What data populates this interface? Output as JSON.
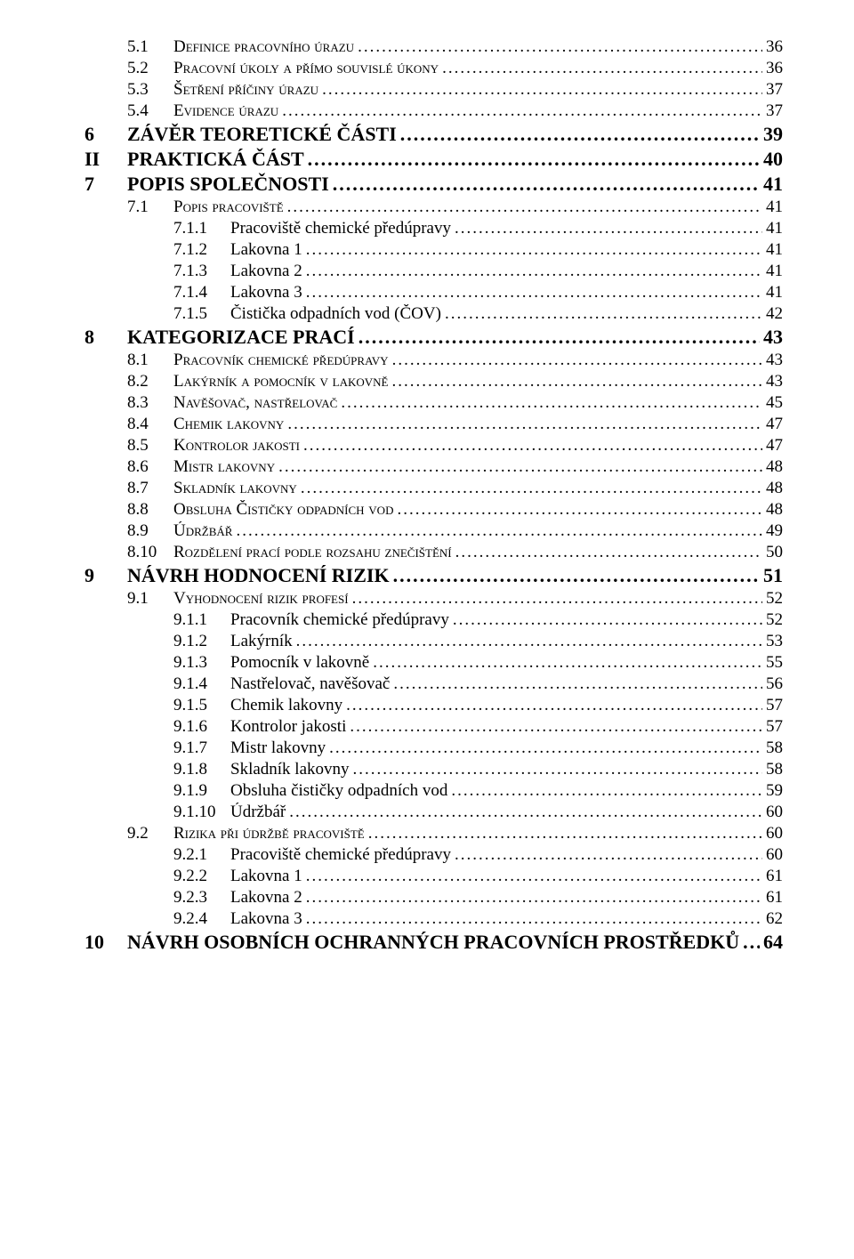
{
  "colors": {
    "text": "#000000",
    "bg": "#ffffff"
  },
  "font": {
    "family": "Times New Roman",
    "l1_size": 22,
    "l2_size": 19,
    "l3_size": 19
  },
  "entries": [
    {
      "level": 2,
      "num": "5.1",
      "label": "Definice pracovního úrazu",
      "page": "36"
    },
    {
      "level": 2,
      "num": "5.2",
      "label": "Pracovní úkoly a přímo souvislé úkony",
      "page": "36"
    },
    {
      "level": 2,
      "num": "5.3",
      "label": "Šetření příčiny úrazu",
      "page": "37"
    },
    {
      "level": 2,
      "num": "5.4",
      "label": "Evidence úrazu",
      "page": "37"
    },
    {
      "level": 1,
      "num": "6",
      "label": "ZÁVĚR TEORETICKÉ ČÁSTI",
      "page": "39"
    },
    {
      "level": 0,
      "num": "II",
      "label": "PRAKTICKÁ ČÁST",
      "page": "40"
    },
    {
      "level": 1,
      "num": "7",
      "label": "POPIS SPOLEČNOSTI",
      "page": "41"
    },
    {
      "level": 2,
      "num": "7.1",
      "label": "Popis pracoviště",
      "page": "41"
    },
    {
      "level": 3,
      "num": "7.1.1",
      "label": "Pracoviště chemické předúpravy",
      "page": "41"
    },
    {
      "level": 3,
      "num": "7.1.2",
      "label": "Lakovna 1",
      "page": "41"
    },
    {
      "level": 3,
      "num": "7.1.3",
      "label": "Lakovna 2",
      "page": "41"
    },
    {
      "level": 3,
      "num": "7.1.4",
      "label": "Lakovna 3",
      "page": "41"
    },
    {
      "level": 3,
      "num": "7.1.5",
      "label": "Čistička odpadních vod (ČOV)",
      "page": "42"
    },
    {
      "level": 1,
      "num": "8",
      "label": "KATEGORIZACE PRACÍ",
      "page": "43"
    },
    {
      "level": 2,
      "num": "8.1",
      "label": "Pracovník chemické předúpravy",
      "page": "43"
    },
    {
      "level": 2,
      "num": "8.2",
      "label": "Lakýrník a pomocník v lakovně",
      "page": "43"
    },
    {
      "level": 2,
      "num": "8.3",
      "label": "Navěšovač, nastřelovač",
      "page": "45"
    },
    {
      "level": 2,
      "num": "8.4",
      "label": "Chemik lakovny",
      "page": "47"
    },
    {
      "level": 2,
      "num": "8.5",
      "label": "Kontrolor jakosti",
      "page": "47"
    },
    {
      "level": 2,
      "num": "8.6",
      "label": "Mistr lakovny",
      "page": "48"
    },
    {
      "level": 2,
      "num": "8.7",
      "label": "Skladník lakovny",
      "page": "48"
    },
    {
      "level": 2,
      "num": "8.8",
      "label": "Obsluha Čističky odpadních vod",
      "page": "48"
    },
    {
      "level": 2,
      "num": "8.9",
      "label": "Údržbář",
      "page": "49"
    },
    {
      "level": 2,
      "num": "8.10",
      "label": "Rozdělení prací podle rozsahu znečištění",
      "page": "50"
    },
    {
      "level": 1,
      "num": "9",
      "label": "NÁVRH HODNOCENÍ RIZIK",
      "page": "51"
    },
    {
      "level": 2,
      "num": "9.1",
      "label": "Vyhodnocení rizik profesí",
      "page": "52"
    },
    {
      "level": 3,
      "num": "9.1.1",
      "label": "Pracovník chemické předúpravy",
      "page": "52"
    },
    {
      "level": 3,
      "num": "9.1.2",
      "label": "Lakýrník",
      "page": "53"
    },
    {
      "level": 3,
      "num": "9.1.3",
      "label": "Pomocník v lakovně",
      "page": "55"
    },
    {
      "level": 3,
      "num": "9.1.4",
      "label": "Nastřelovač, navěšovač",
      "page": "56"
    },
    {
      "level": 3,
      "num": "9.1.5",
      "label": "Chemik lakovny",
      "page": "57"
    },
    {
      "level": 3,
      "num": "9.1.6",
      "label": "Kontrolor jakosti",
      "page": "57"
    },
    {
      "level": 3,
      "num": "9.1.7",
      "label": "Mistr lakovny",
      "page": "58"
    },
    {
      "level": 3,
      "num": "9.1.8",
      "label": "Skladník lakovny",
      "page": "58"
    },
    {
      "level": 3,
      "num": "9.1.9",
      "label": "Obsluha čističky odpadních vod",
      "page": "59"
    },
    {
      "level": 3,
      "num": "9.1.10",
      "label": "Údržbář",
      "page": "60"
    },
    {
      "level": 2,
      "num": "9.2",
      "label": "Rizika při údržbě pracoviště",
      "page": "60"
    },
    {
      "level": 3,
      "num": "9.2.1",
      "label": "Pracoviště chemické předúpravy",
      "page": "60"
    },
    {
      "level": 3,
      "num": "9.2.2",
      "label": "Lakovna 1",
      "page": "61"
    },
    {
      "level": 3,
      "num": "9.2.3",
      "label": "Lakovna 2",
      "page": "61"
    },
    {
      "level": 3,
      "num": "9.2.4",
      "label": "Lakovna 3",
      "page": "62"
    },
    {
      "level": 1,
      "num": "10",
      "label": "NÁVRH OSOBNÍCH OCHRANNÝCH PRACOVNÍCH PROSTŘEDKŮ",
      "page": "64"
    }
  ]
}
